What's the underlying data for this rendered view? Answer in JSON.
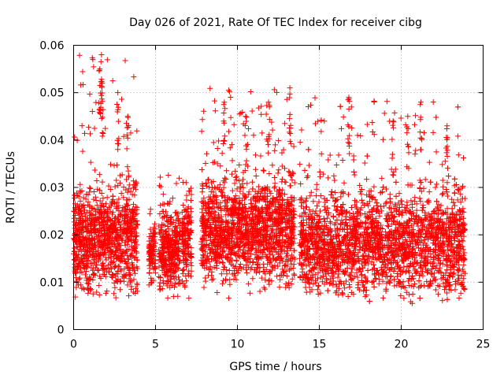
{
  "chart_data": {
    "type": "scatter",
    "title": "Day 026 of 2021, Rate Of TEC Index for receiver cibg",
    "xlabel": "GPS time / hours",
    "ylabel": "ROTI / TECUs",
    "xlim": [
      0,
      25
    ],
    "ylim": [
      0,
      0.06
    ],
    "xticks": [
      "0",
      "5",
      "10",
      "15",
      "20",
      "25"
    ],
    "yticks": [
      "0",
      "0.01",
      "0.02",
      "0.03",
      "0.04",
      "0.05",
      "0.06"
    ],
    "grid": true,
    "marker": "+",
    "color": "#ff0000",
    "series": [
      {
        "name": "ROTI",
        "segments": [
          {
            "start": 0.0,
            "end": 3.9,
            "mean": 0.019,
            "spread": 0.007,
            "max": 0.058
          },
          {
            "start": 4.6,
            "end": 5.0,
            "mean": 0.016,
            "spread": 0.004,
            "max": 0.026
          },
          {
            "start": 5.2,
            "end": 6.5,
            "mean": 0.017,
            "spread": 0.006,
            "max": 0.033
          },
          {
            "start": 6.6,
            "end": 7.2,
            "mean": 0.018,
            "spread": 0.006,
            "max": 0.035
          },
          {
            "start": 7.8,
            "end": 13.5,
            "mean": 0.021,
            "spread": 0.007,
            "max": 0.051
          },
          {
            "start": 13.8,
            "end": 23.9,
            "mean": 0.018,
            "spread": 0.007,
            "max": 0.049
          }
        ],
        "peaks": [
          {
            "x": 1.7,
            "y": 0.058
          },
          {
            "x": 1.6,
            "y": 0.055
          },
          {
            "x": 1.75,
            "y": 0.052
          },
          {
            "x": 2.7,
            "y": 0.05
          },
          {
            "x": 3.3,
            "y": 0.045
          },
          {
            "x": 9.2,
            "y": 0.048
          },
          {
            "x": 10.5,
            "y": 0.045
          },
          {
            "x": 11.9,
            "y": 0.048
          },
          {
            "x": 13.2,
            "y": 0.051
          },
          {
            "x": 16.8,
            "y": 0.049
          },
          {
            "x": 19.5,
            "y": 0.044
          },
          {
            "x": 20.4,
            "y": 0.045
          },
          {
            "x": 21.2,
            "y": 0.048
          },
          {
            "x": 22.8,
            "y": 0.043
          }
        ]
      }
    ]
  }
}
